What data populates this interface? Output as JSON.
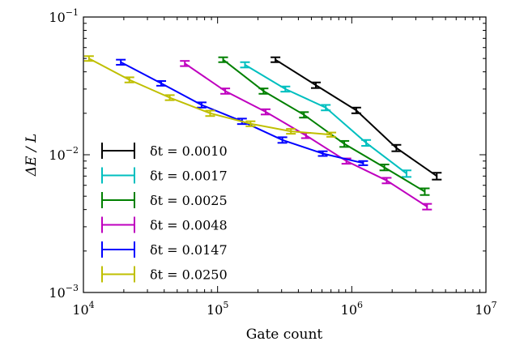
{
  "chart_data": {
    "type": "line",
    "title": "",
    "xlabel": "Gate count",
    "ylabel": "ΔE / L",
    "xscale": "log",
    "yscale": "log",
    "xlim": [
      10000,
      10000000
    ],
    "ylim": [
      0.001,
      0.1
    ],
    "x_ticks": [
      {
        "value": 10000,
        "base": "10",
        "exp": "4"
      },
      {
        "value": 100000,
        "base": "10",
        "exp": "5"
      },
      {
        "value": 1000000,
        "base": "10",
        "exp": "6"
      },
      {
        "value": 10000000,
        "base": "10",
        "exp": "7"
      }
    ],
    "y_ticks": [
      {
        "value": 0.001,
        "base": "10",
        "exp": "−3"
      },
      {
        "value": 0.01,
        "base": "10",
        "exp": "−2"
      },
      {
        "value": 0.1,
        "base": "10",
        "exp": "−1"
      }
    ],
    "grid": false,
    "legend_position": "lower-left",
    "series": [
      {
        "name": "δt = 0.0010",
        "color": "#000000",
        "points": [
          {
            "x": 270000,
            "y": 0.049,
            "err": 0.002
          },
          {
            "x": 540000,
            "y": 0.032,
            "err": 0.0015
          },
          {
            "x": 1080000,
            "y": 0.021,
            "err": 0.001
          },
          {
            "x": 2150000,
            "y": 0.0112,
            "err": 0.0006
          },
          {
            "x": 4300000,
            "y": 0.007,
            "err": 0.0004
          }
        ]
      },
      {
        "name": "δt = 0.0017",
        "color": "#00bfbf",
        "points": [
          {
            "x": 160000,
            "y": 0.045,
            "err": 0.002
          },
          {
            "x": 320000,
            "y": 0.03,
            "err": 0.0013
          },
          {
            "x": 640000,
            "y": 0.022,
            "err": 0.001
          },
          {
            "x": 1280000,
            "y": 0.0122,
            "err": 0.0006
          },
          {
            "x": 2560000,
            "y": 0.0073,
            "err": 0.0004
          }
        ]
      },
      {
        "name": "δt = 0.0025",
        "color": "#008000",
        "points": [
          {
            "x": 110000,
            "y": 0.049,
            "err": 0.002
          },
          {
            "x": 220000,
            "y": 0.029,
            "err": 0.0013
          },
          {
            "x": 440000,
            "y": 0.0195,
            "err": 0.0009
          },
          {
            "x": 880000,
            "y": 0.012,
            "err": 0.0006
          },
          {
            "x": 1750000,
            "y": 0.0081,
            "err": 0.0004
          },
          {
            "x": 3500000,
            "y": 0.0054,
            "err": 0.0003
          }
        ]
      },
      {
        "name": "δt = 0.0048",
        "color": "#bf00bf",
        "points": [
          {
            "x": 57000,
            "y": 0.046,
            "err": 0.002
          },
          {
            "x": 114000,
            "y": 0.029,
            "err": 0.0013
          },
          {
            "x": 228000,
            "y": 0.0205,
            "err": 0.0009
          },
          {
            "x": 456000,
            "y": 0.0138,
            "err": 0.0006
          },
          {
            "x": 912000,
            "y": 0.009,
            "err": 0.0004
          },
          {
            "x": 1820000,
            "y": 0.0065,
            "err": 0.0003
          },
          {
            "x": 3640000,
            "y": 0.0042,
            "err": 0.0002
          }
        ]
      },
      {
        "name": "δt = 0.0147",
        "color": "#0000ff",
        "points": [
          {
            "x": 19000,
            "y": 0.047,
            "err": 0.002
          },
          {
            "x": 38000,
            "y": 0.033,
            "err": 0.0013
          },
          {
            "x": 76000,
            "y": 0.023,
            "err": 0.001
          },
          {
            "x": 152000,
            "y": 0.0175,
            "err": 0.0008
          },
          {
            "x": 304000,
            "y": 0.0128,
            "err": 0.0006
          },
          {
            "x": 608000,
            "y": 0.0102,
            "err": 0.0004
          },
          {
            "x": 1216000,
            "y": 0.0087,
            "err": 0.0003
          }
        ]
      },
      {
        "name": "δt = 0.0250",
        "color": "#bfbf00",
        "points": [
          {
            "x": 11000,
            "y": 0.05,
            "err": 0.002
          },
          {
            "x": 22000,
            "y": 0.035,
            "err": 0.0015
          },
          {
            "x": 44000,
            "y": 0.026,
            "err": 0.0011
          },
          {
            "x": 88000,
            "y": 0.02,
            "err": 0.0009
          },
          {
            "x": 176000,
            "y": 0.0168,
            "err": 0.0007
          },
          {
            "x": 352000,
            "y": 0.0148,
            "err": 0.0006
          },
          {
            "x": 704000,
            "y": 0.014,
            "err": 0.0005
          }
        ]
      }
    ]
  }
}
